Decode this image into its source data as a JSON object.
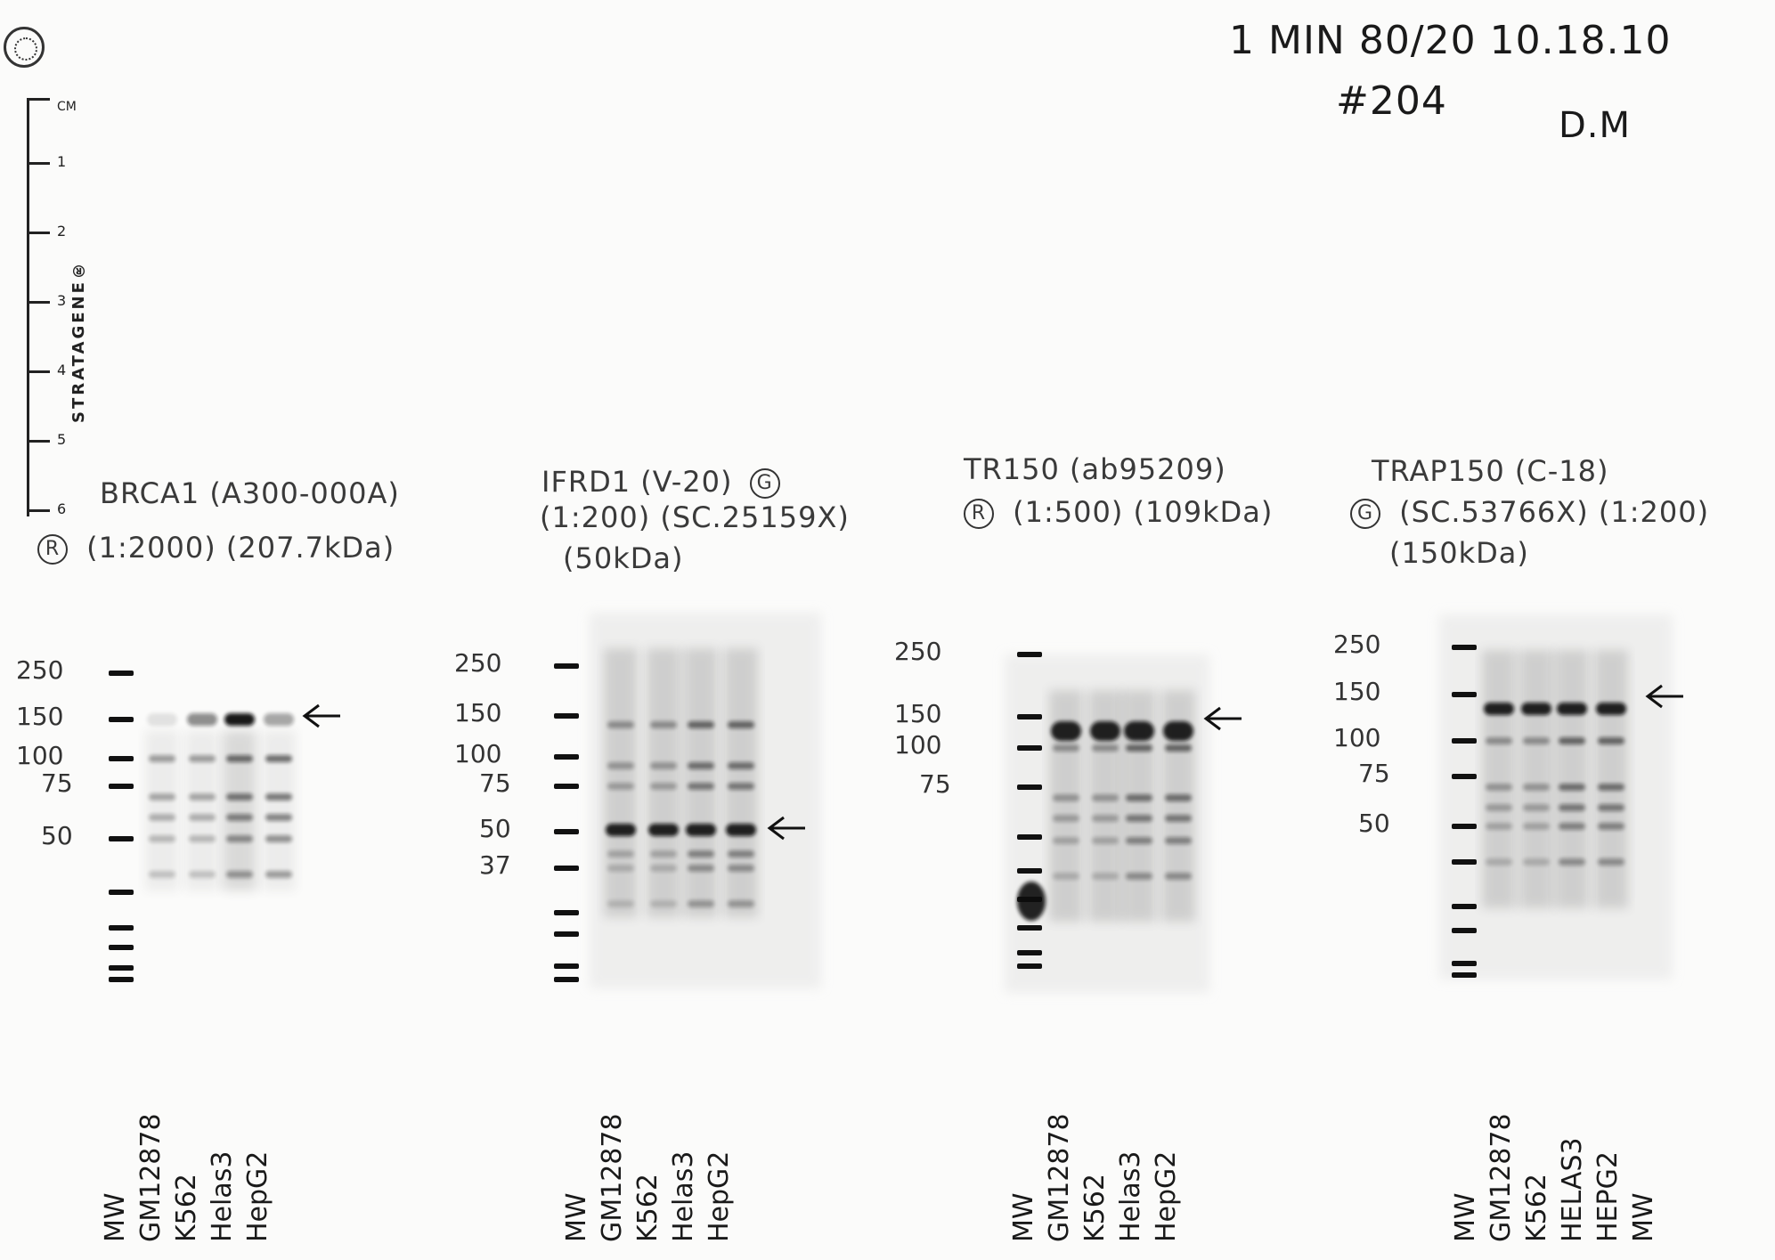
{
  "header": {
    "line1": "1 MIN  80/20  10.18.10",
    "exp_number": "#204",
    "initials": "D.M"
  },
  "ruler": {
    "unit": "CM",
    "marks": [
      "1",
      "2",
      "3",
      "4",
      "5",
      "6"
    ],
    "brand": "STRATAGENE®"
  },
  "blots": [
    {
      "antibody": "BRCA1 (A300-000A)",
      "species": "R",
      "dilution": "(1:2000)",
      "catalog": "",
      "size": "(207.7kDa)",
      "mw_markers": [
        "250",
        "150",
        "100",
        "75",
        "50"
      ],
      "lanes": [
        "MW",
        "GM12878",
        "K562",
        "Helas3",
        "HepG2"
      ],
      "arrow_kda": 150
    },
    {
      "antibody": "IFRD1 (V-20)",
      "species": "G",
      "dilution": "(1:200)",
      "catalog": "(SC.25159X)",
      "size": "(50kDa)",
      "mw_markers": [
        "250",
        "150",
        "100",
        "75",
        "50",
        "37"
      ],
      "lanes": [
        "MW",
        "GM12878",
        "K562",
        "Helas3",
        "HepG2"
      ],
      "arrow_kda": 50
    },
    {
      "antibody": "TR150 (ab95209)",
      "species": "R",
      "dilution": "(1:500)",
      "catalog": "",
      "size": "(109kDa)",
      "mw_markers": [
        "250",
        "150",
        "100",
        "75"
      ],
      "lanes": [
        "MW",
        "GM12878",
        "K562",
        "Helas3",
        "HepG2"
      ],
      "arrow_kda": 140
    },
    {
      "antibody": "TRAP150 (C-18)",
      "species": "G",
      "dilution": "(1:200)",
      "catalog": "(SC.53766X)",
      "size": "(150kDa)",
      "mw_markers": [
        "250",
        "150",
        "100",
        "75",
        "50"
      ],
      "lanes": [
        "MW",
        "GM12878",
        "K562",
        "HELAS3",
        "HEPG2",
        "MW"
      ],
      "arrow_kda": 140
    }
  ],
  "colors": {
    "ink": "#1a1a1a",
    "band": "#111111",
    "gel_bg": "#d8d8d8"
  }
}
